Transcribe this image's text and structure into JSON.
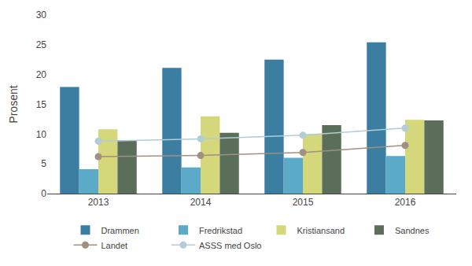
{
  "chart_data": {
    "type": "bar",
    "ylabel": "Prosent",
    "categories": [
      "2013",
      "2014",
      "2015",
      "2016"
    ],
    "series": [
      {
        "name": "Drammen",
        "type": "bar",
        "color": "#3b7ea1",
        "values": [
          17.9,
          21.1,
          22.5,
          25.4
        ]
      },
      {
        "name": "Fredrikstad",
        "type": "bar",
        "color": "#5aaac8",
        "values": [
          4.1,
          4.4,
          6.0,
          6.3
        ]
      },
      {
        "name": "Kristiansand",
        "type": "bar",
        "color": "#d4d87a",
        "values": [
          10.8,
          13.0,
          10.0,
          12.4
        ]
      },
      {
        "name": "Sandnes",
        "type": "bar",
        "color": "#5a6e5a",
        "values": [
          9.0,
          10.2,
          11.5,
          12.3
        ]
      },
      {
        "name": "Landet",
        "type": "line",
        "color": "#a09080",
        "marker": "circle",
        "line_style": "solid",
        "values": [
          6.2,
          6.4,
          6.9,
          8.1
        ]
      },
      {
        "name": "ASSS med Oslo",
        "type": "line",
        "color": "#b0cdd8",
        "marker": "circle",
        "line_style": "solid",
        "values": [
          8.8,
          9.2,
          9.8,
          11.0
        ]
      }
    ],
    "ylim": [
      0,
      30
    ],
    "yticks": [
      0,
      5,
      10,
      15,
      20,
      25,
      30
    ],
    "grid": false,
    "legend": "bottom"
  }
}
